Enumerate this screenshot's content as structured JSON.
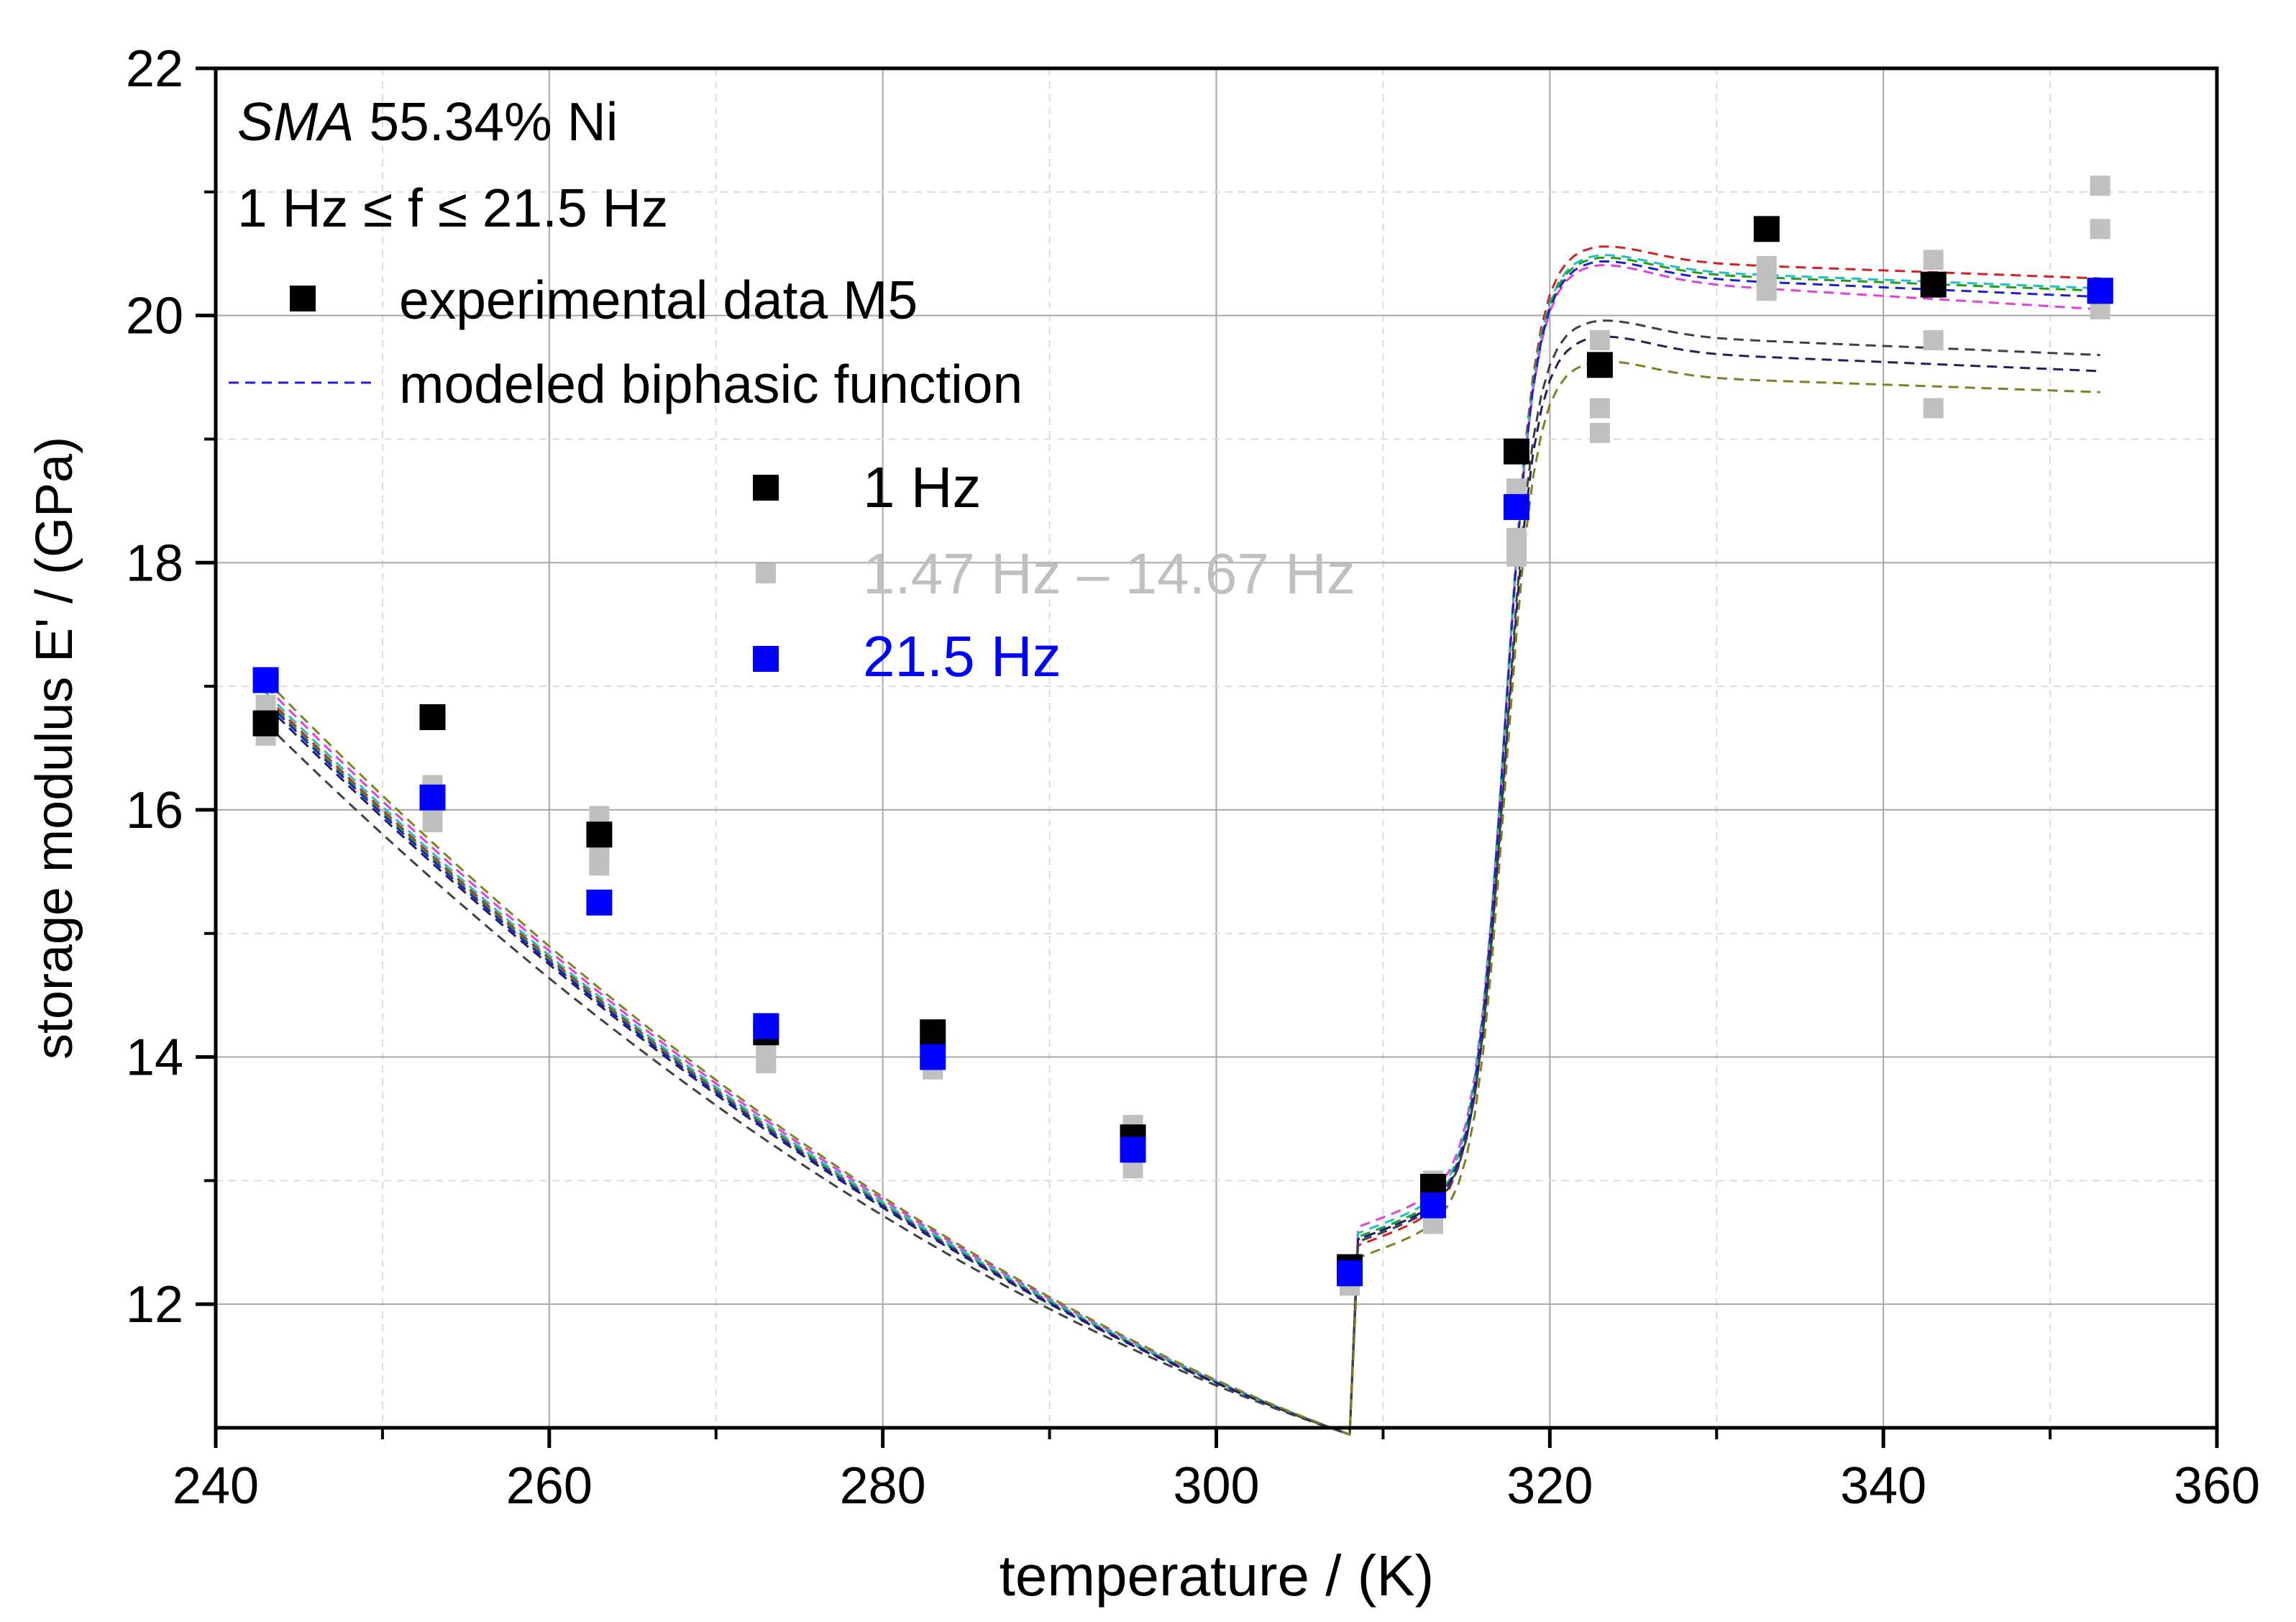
{
  "chart_data": {
    "type": "scatter",
    "title": "",
    "xlabel": "temperature / (K)",
    "ylabel": "storage modulus E' / (GPa)",
    "xlim": [
      240,
      360
    ],
    "ylim": [
      11,
      22
    ],
    "x_ticks": [
      240,
      260,
      280,
      300,
      320,
      340,
      360
    ],
    "y_ticks": [
      12,
      14,
      16,
      18,
      20,
      22
    ],
    "grid": true,
    "annotations": {
      "line1_italic": "SMA",
      "line1_rest": " 55.34% Ni",
      "line2": "1 Hz ≤ f ≤ 21.5 Hz"
    },
    "legend_top": [
      {
        "label": "experimental data M5",
        "marker": "square",
        "color": "#000000"
      },
      {
        "label": "modeled biphasic function",
        "marker": "dashed-line",
        "color": "#1f1fe0"
      }
    ],
    "legend_freq": [
      {
        "label": "1 Hz",
        "color": "#000000"
      },
      {
        "label": "1.47 Hz – 14.67 Hz",
        "color": "#c0c0c0"
      },
      {
        "label": "21.5 Hz",
        "color": "#0000ff"
      }
    ],
    "x": [
      243,
      253,
      263,
      273,
      283,
      295,
      308,
      313,
      318,
      323,
      333,
      343,
      353
    ],
    "series": [
      {
        "name": "1 Hz",
        "color": "#000000",
        "y": [
          16.7,
          16.75,
          15.8,
          14.2,
          14.2,
          13.35,
          12.3,
          12.95,
          18.9,
          19.6,
          20.7,
          20.25,
          20.2
        ]
      },
      {
        "name": "1.47 Hz – 14.67 Hz",
        "color": "#c0c0c0",
        "y_sets": [
          [
            16.85,
            16.05,
            15.95,
            14.1,
            14.15,
            13.45,
            12.2,
            13.0,
            18.6,
            19.8,
            20.4,
            20.45,
            21.05
          ],
          [
            16.65,
            15.9,
            15.55,
            13.95,
            13.9,
            13.1,
            12.15,
            12.65,
            18.2,
            19.25,
            20.2,
            19.8,
            20.7
          ],
          [
            16.6,
            16.2,
            15.65,
            14.05,
            14.0,
            13.2,
            12.25,
            12.75,
            18.05,
            19.05,
            20.25,
            19.25,
            20.05
          ]
        ]
      },
      {
        "name": "21.5 Hz",
        "color": "#0000ff",
        "y": [
          17.05,
          16.1,
          15.25,
          14.25,
          14.0,
          13.25,
          12.25,
          12.8,
          18.45,
          null,
          null,
          null,
          20.2
        ]
      }
    ],
    "model_curves": [
      {
        "color": "#d62020",
        "low_offset": 0.02,
        "min_val": 12.45,
        "plateau": [
          20.45,
          20.3
        ]
      },
      {
        "color": "#e040e0",
        "low_offset": 0.1,
        "min_val": 12.6,
        "plateau": [
          20.3,
          20.05
        ]
      },
      {
        "color": "#20c0c0",
        "low_offset": 0.05,
        "min_val": 12.55,
        "plateau": [
          20.38,
          20.22
        ]
      },
      {
        "color": "#20a020",
        "low_offset": 0.0,
        "min_val": 12.52,
        "plateau": [
          20.36,
          20.2
        ]
      },
      {
        "color": "#2020d0",
        "low_offset": -0.02,
        "min_val": 12.5,
        "plateau": [
          20.33,
          20.15
        ]
      },
      {
        "color": "#202060",
        "low_offset": -0.05,
        "min_val": 12.5,
        "plateau": [
          19.72,
          19.55
        ]
      },
      {
        "color": "#404040",
        "low_offset": -0.2,
        "min_val": 12.48,
        "plateau": [
          19.85,
          19.68
        ]
      },
      {
        "color": "#808020",
        "low_offset": 0.15,
        "min_val": 12.35,
        "plateau": [
          19.52,
          19.38
        ]
      }
    ]
  }
}
